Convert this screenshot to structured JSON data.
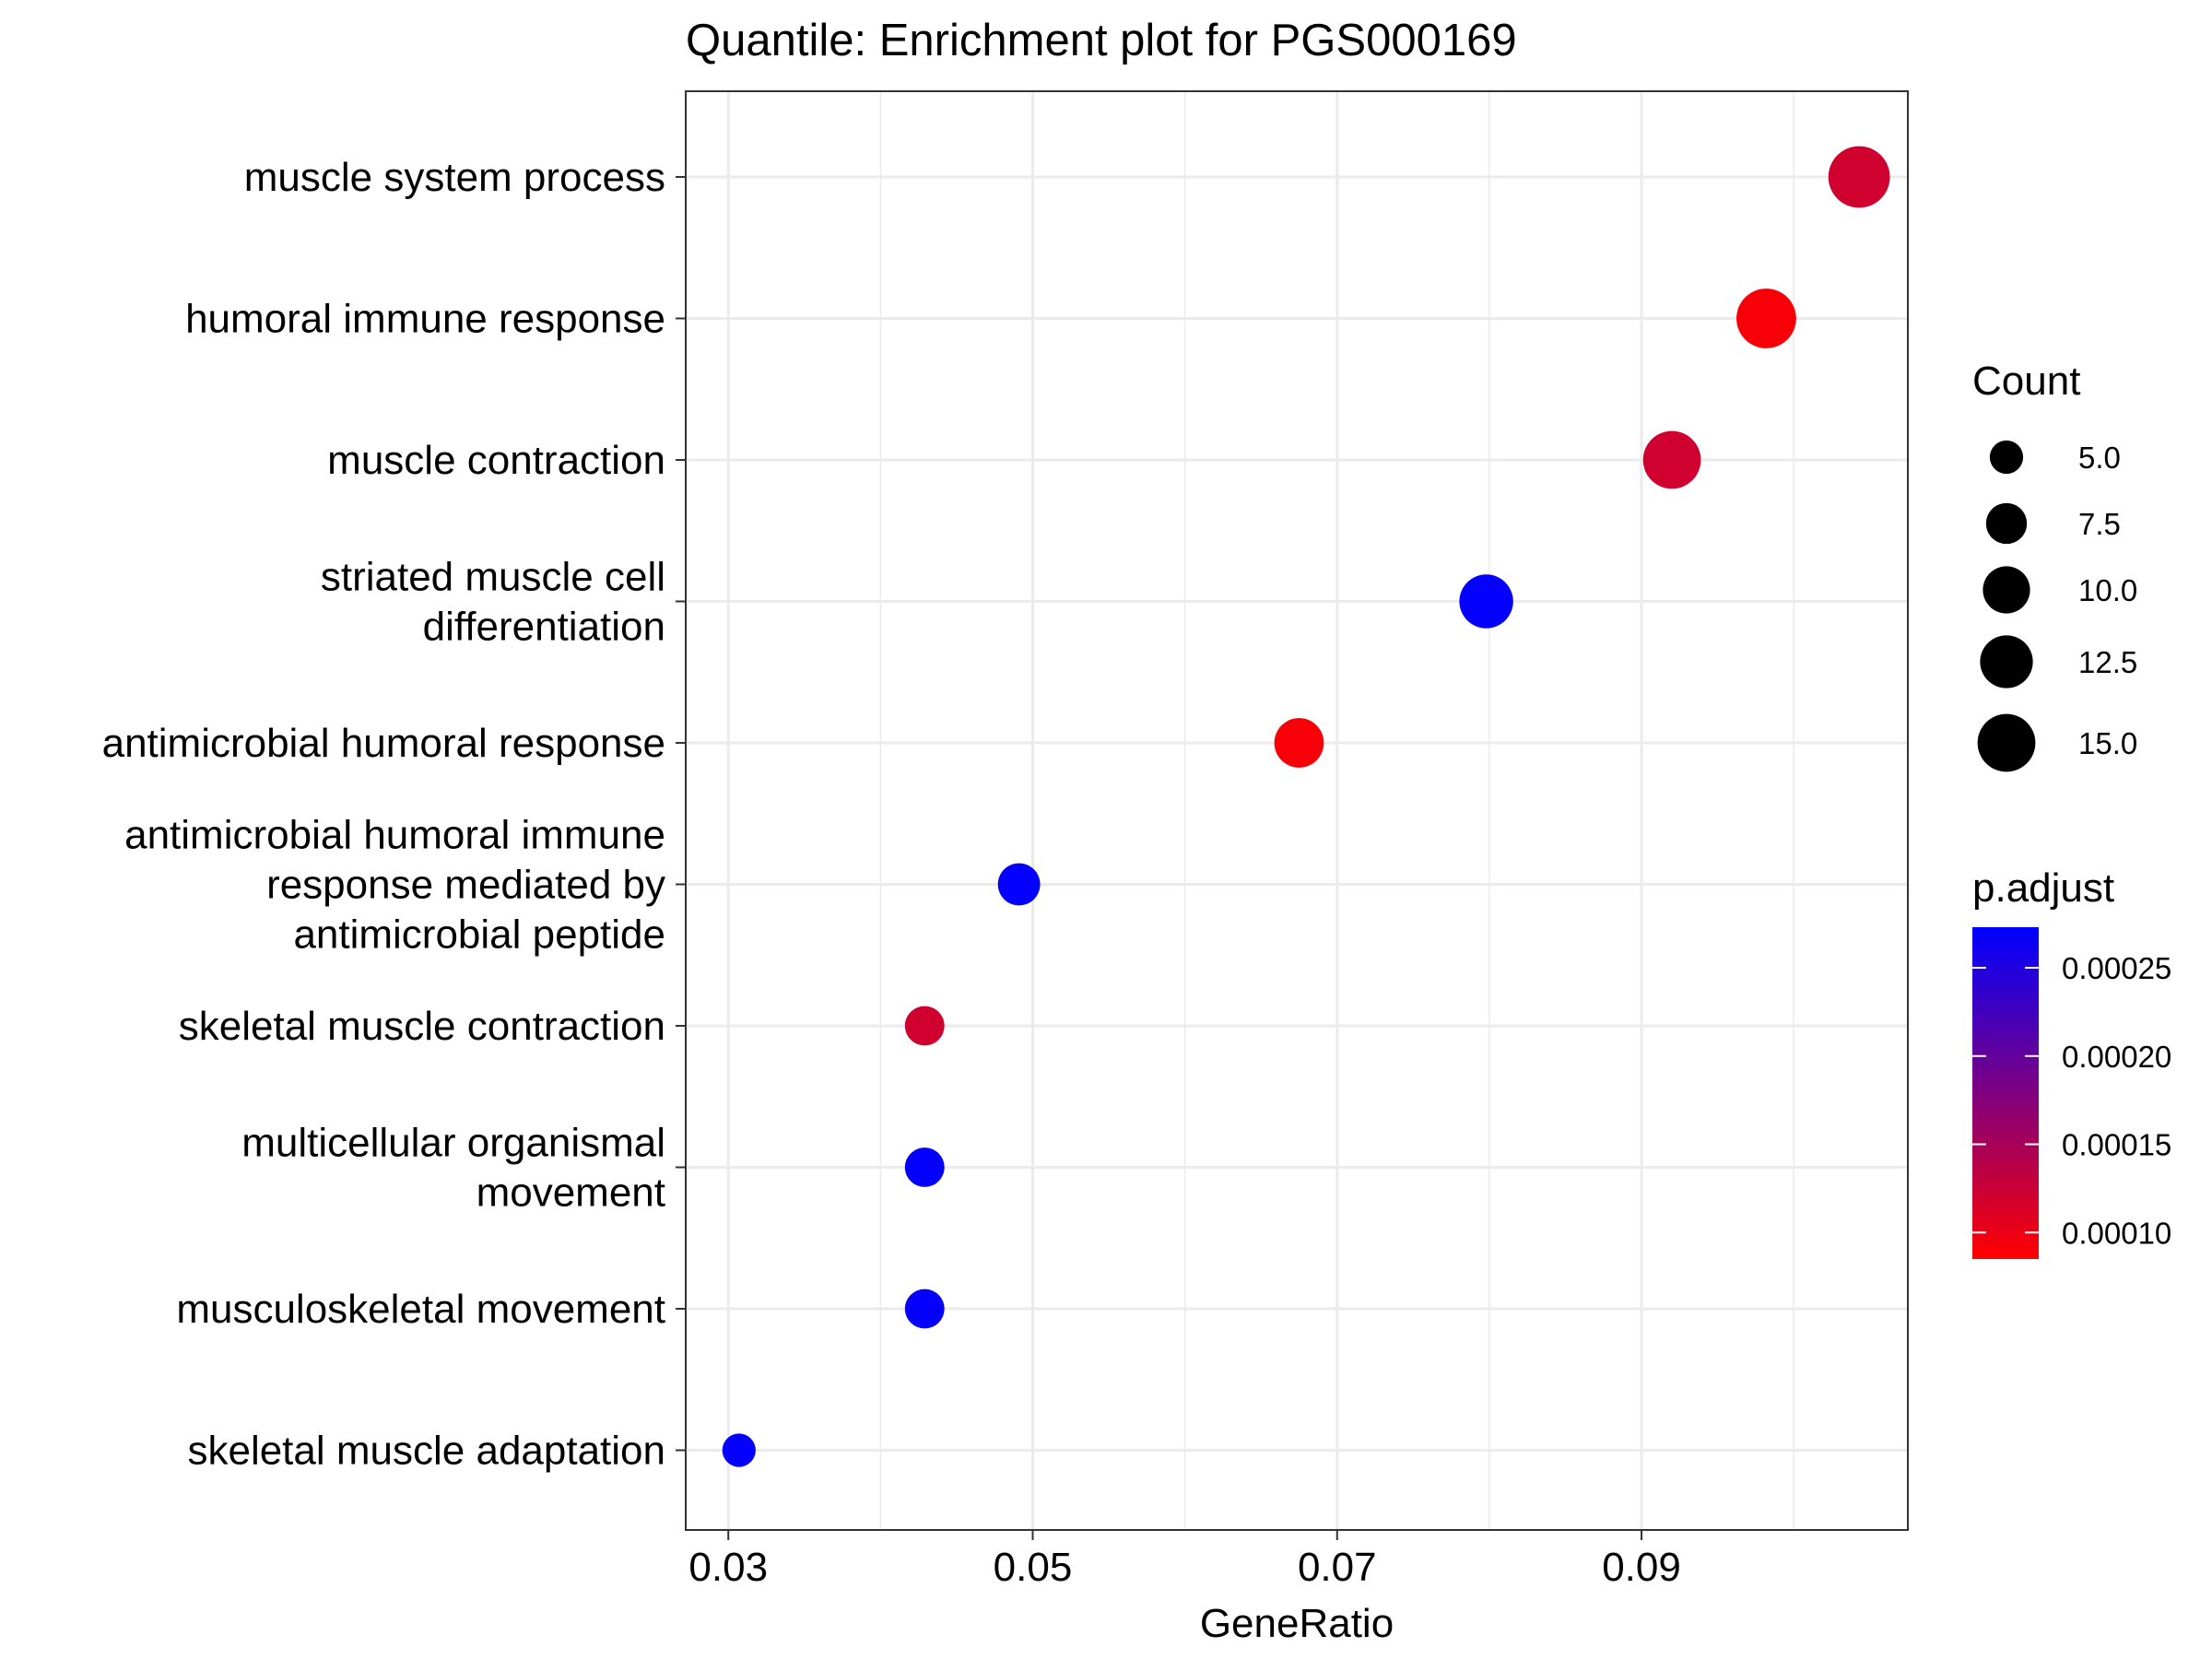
{
  "chart_data": {
    "type": "scatter",
    "title": "Quantile: Enrichment plot for PGS000169",
    "xlabel": "GeneRatio",
    "ylabel": "",
    "xlim": [
      0.0272,
      0.1075
    ],
    "xticks": [
      0.03,
      0.05,
      0.07,
      0.09
    ],
    "xtick_labels": [
      "0.03",
      "0.05",
      "0.07",
      "0.09"
    ],
    "x_minor_ticks": [
      0.04,
      0.06,
      0.08,
      0.1
    ],
    "grid": true,
    "categories": [
      "muscle system process",
      "humoral immune response",
      "muscle contraction",
      "striated muscle cell\ndifferentiation",
      "antimicrobial humoral response",
      "antimicrobial humoral immune\nresponse mediated by\nantimicrobial peptide",
      "skeletal muscle contraction",
      "multicellular organismal\nmovement",
      "musculoskeletal movement",
      "skeletal muscle adaptation"
    ],
    "points": [
      {
        "term": "muscle system process",
        "gene_ratio": 0.1043,
        "count": 17,
        "p_adjust": 0.00012
      },
      {
        "term": "humoral immune response",
        "gene_ratio": 0.0982,
        "count": 16,
        "p_adjust": 9e-05
      },
      {
        "term": "muscle contraction",
        "gene_ratio": 0.092,
        "count": 15,
        "p_adjust": 0.00012
      },
      {
        "term": "striated muscle cell differentiation",
        "gene_ratio": 0.0798,
        "count": 13,
        "p_adjust": 0.00027
      },
      {
        "term": "antimicrobial humoral response",
        "gene_ratio": 0.0675,
        "count": 11,
        "p_adjust": 9e-05
      },
      {
        "term": "antimicrobial humoral immune response mediated by antimicrobial peptide",
        "gene_ratio": 0.0491,
        "count": 8,
        "p_adjust": 0.00027
      },
      {
        "term": "skeletal muscle contraction",
        "gene_ratio": 0.0429,
        "count": 7,
        "p_adjust": 0.00012
      },
      {
        "term": "multicellular organismal movement",
        "gene_ratio": 0.0429,
        "count": 7,
        "p_adjust": 0.00027
      },
      {
        "term": "musculoskeletal movement",
        "gene_ratio": 0.0429,
        "count": 7,
        "p_adjust": 0.00027
      },
      {
        "term": "skeletal muscle adaptation",
        "gene_ratio": 0.0307,
        "count": 5,
        "p_adjust": 0.00027
      }
    ],
    "size_legend": {
      "title": "Count",
      "values": [
        5.0,
        7.5,
        10.0,
        12.5,
        15.0
      ],
      "labels": [
        "5.0",
        "7.5",
        "10.0",
        "12.5",
        "15.0"
      ]
    },
    "color_legend": {
      "title": "p.adjust",
      "range": [
        8.5e-05,
        0.000273
      ],
      "ticks": [
        0.0001,
        0.00015,
        0.0002,
        0.00025
      ],
      "labels": [
        "0.00010",
        "0.00015",
        "0.00020",
        "0.00025"
      ],
      "low_color": "#FF0000",
      "high_color": "#0000FF"
    }
  }
}
